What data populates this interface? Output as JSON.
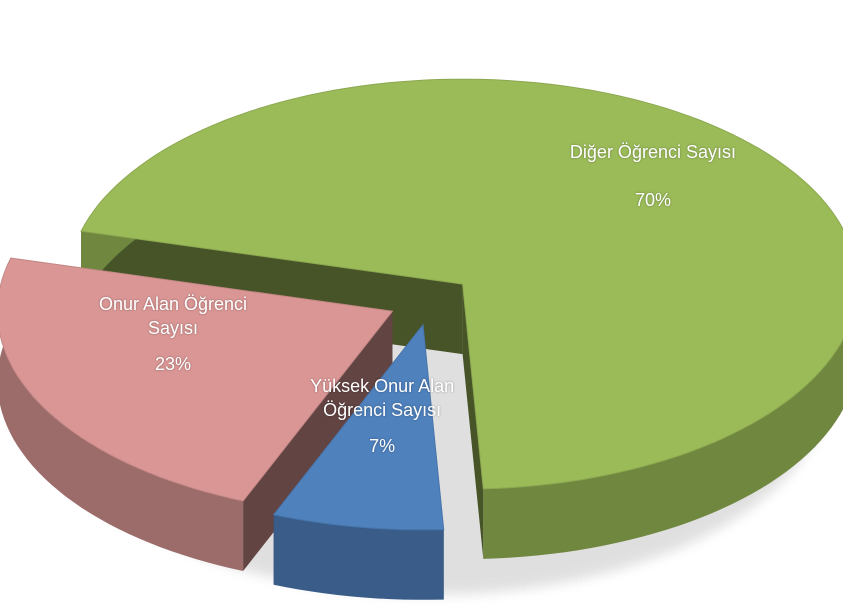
{
  "chart_data": {
    "type": "pie3d",
    "categories": [
      "Diğer Öğrenci Sayısı",
      "Yüksek Onur Alan Öğrenci Sayısı",
      "Onur Alan Öğrenci Sayısı"
    ],
    "values": [
      70,
      7,
      23
    ],
    "value_labels": [
      "70%",
      "7%",
      "23%"
    ],
    "colors": [
      "#9bbb59",
      "#4f81bd",
      "#d99694"
    ]
  }
}
